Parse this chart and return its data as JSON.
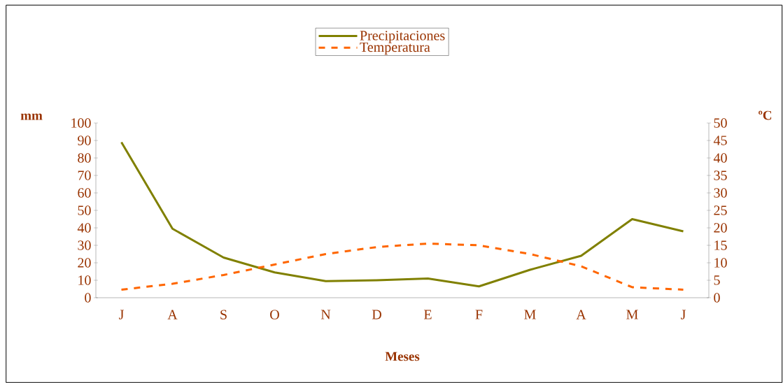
{
  "chart_data": {
    "type": "line",
    "xlabel": "Meses",
    "ylabel": "mm",
    "y2label": "ºC",
    "categories": [
      "J",
      "A",
      "S",
      "O",
      "N",
      "D",
      "E",
      "F",
      "M",
      "A",
      "M",
      "J"
    ],
    "series": [
      {
        "name": "Precipitaciones",
        "color": "#808000",
        "line_style": "solid",
        "values": [
          89,
          39.5,
          23,
          14.5,
          9.5,
          10,
          11,
          6.5,
          16,
          24,
          45,
          38
        ]
      },
      {
        "name": "Temperatura",
        "color": "#ff6600",
        "line_style": "dashed",
        "axis": "y2",
        "values": [
          2.3,
          4,
          6.5,
          9.5,
          12.5,
          14.5,
          15.5,
          15,
          12.5,
          9,
          3,
          2.3
        ]
      }
    ],
    "ylim": [
      0,
      100
    ],
    "yticks": [
      0,
      10,
      20,
      30,
      40,
      50,
      60,
      70,
      80,
      90,
      100
    ],
    "y2lim": [
      0,
      50
    ],
    "y2ticks": [
      0,
      5,
      10,
      15,
      20,
      25,
      30,
      35,
      40,
      45,
      50
    ],
    "legend": "top",
    "grid": false
  }
}
